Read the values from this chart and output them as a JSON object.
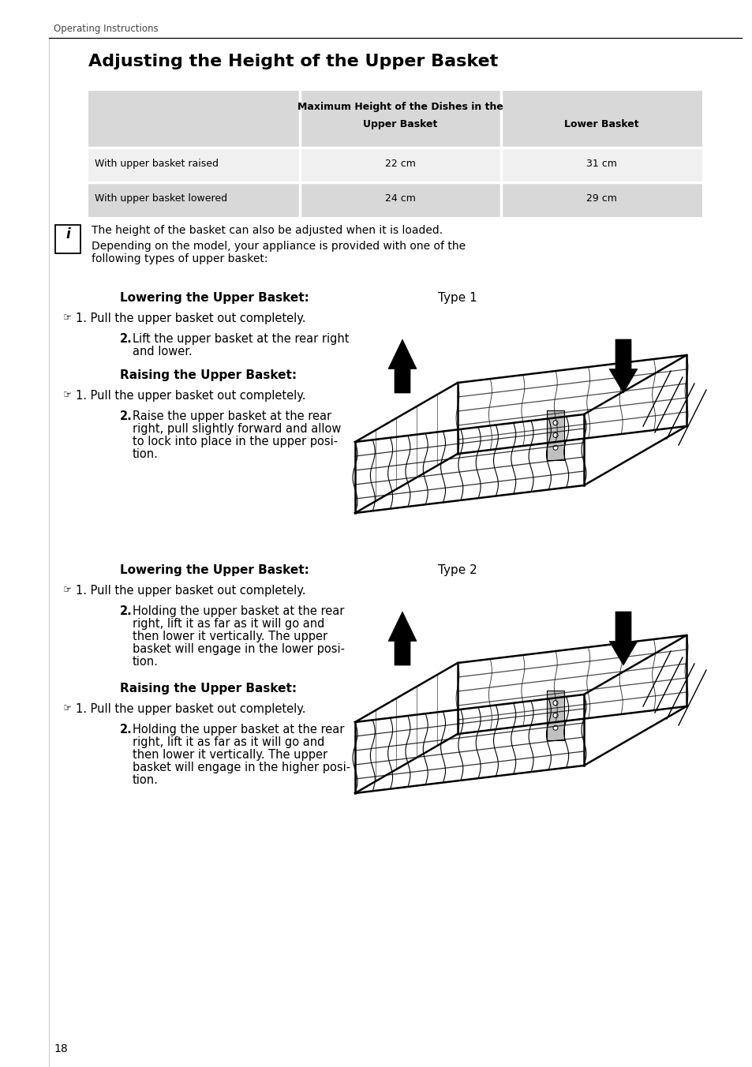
{
  "page_title": "Operating Instructions",
  "section_title": "Adjusting the Height of the Upper Basket",
  "table_header_top": "Maximum Height of the Dishes in the",
  "table_header_ub": "Upper Basket",
  "table_header_lb": "Lower Basket",
  "table_row1_col1": "With upper basket raised",
  "table_row1_col2": "22 cm",
  "table_row1_col3": "31 cm",
  "table_row2_col1": "With upper basket lowered",
  "table_row2_col2": "24 cm",
  "table_row2_col3": "29 cm",
  "info1": "The height of the basket can also be adjusted when it is loaded.",
  "info2": "Depending on the model, your appliance is provided with one of the",
  "info3": "following types of upper basket:",
  "t1_lower_hd": "Lowering the Upper Basket:",
  "t1_label": "Type 1",
  "t1_s1": "1. Pull the upper basket out completely.",
  "t1_s2a": "2.",
  "t1_s2b": "Lift the upper basket at the rear right",
  "t1_s2c": "and lower.",
  "t1_raise_hd": "Raising the Upper Basket:",
  "t1_r1": "1. Pull the upper basket out completely.",
  "t1_r2a": "2.",
  "t1_r2b": "Raise the upper basket at the rear",
  "t1_r2c": "right, pull slightly forward and allow",
  "t1_r2d": "to lock into place in the upper posi-",
  "t1_r2e": "tion.",
  "t2_lower_hd": "Lowering the Upper Basket:",
  "t2_label": "Type 2",
  "t2_s1": "1. Pull the upper basket out completely.",
  "t2_s2a": "2.",
  "t2_s2b": "Holding the upper basket at the rear",
  "t2_s2c": "right, lift it as far as it will go and",
  "t2_s2d": "then lower it vertically. The upper",
  "t2_s2e": "basket will engage in the lower posi-",
  "t2_s2f": "tion.",
  "t2_raise_hd": "Raising the Upper Basket:",
  "t2_r1": "1. Pull the upper basket out completely.",
  "t2_r2a": "2.",
  "t2_r2b": "Holding the upper basket at the rear",
  "t2_r2c": "right, lift it as far as it will go and",
  "t2_r2d": "then lower it vertically. The upper",
  "t2_r2e": "basket will engage in the higher posi-",
  "t2_r2f": "tion.",
  "page_number": "18",
  "bg_color": "#ffffff"
}
